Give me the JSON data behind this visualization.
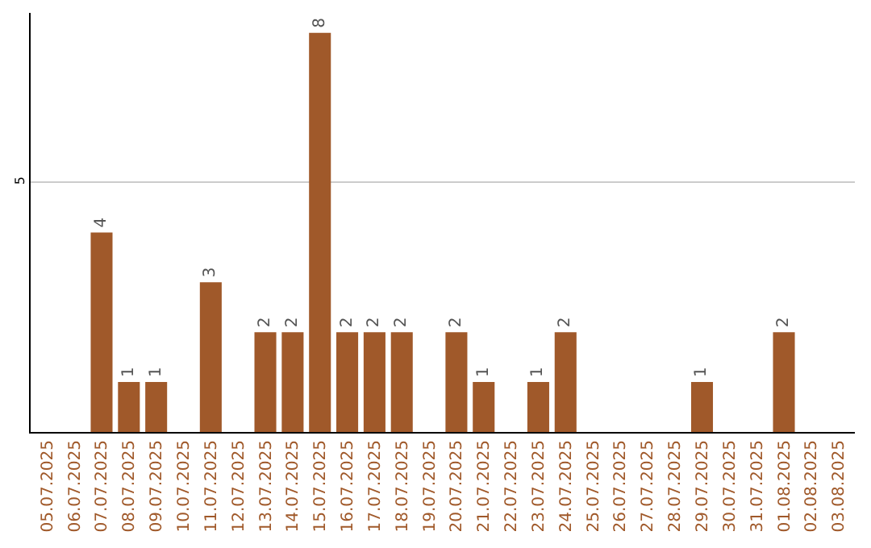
{
  "chart_data": {
    "type": "bar",
    "categories": [
      "05.07.2025",
      "06.07.2025",
      "07.07.2025",
      "08.07.2025",
      "09.07.2025",
      "10.07.2025",
      "11.07.2025",
      "12.07.2025",
      "13.07.2025",
      "14.07.2025",
      "15.07.2025",
      "16.07.2025",
      "17.07.2025",
      "18.07.2025",
      "19.07.2025",
      "20.07.2025",
      "21.07.2025",
      "22.07.2025",
      "23.07.2025",
      "24.07.2025",
      "25.07.2025",
      "26.07.2025",
      "27.07.2025",
      "28.07.2025",
      "29.07.2025",
      "30.07.2025",
      "31.07.2025",
      "01.08.2025",
      "02.08.2025",
      "03.08.2025"
    ],
    "values": [
      0,
      0,
      4,
      1,
      1,
      0,
      3,
      0,
      2,
      2,
      8,
      2,
      2,
      2,
      0,
      2,
      1,
      0,
      1,
      2,
      0,
      0,
      0,
      0,
      1,
      0,
      0,
      2,
      0,
      0
    ],
    "value_labels": [
      null,
      null,
      "4",
      "1",
      "1",
      null,
      "3",
      null,
      "2",
      "2",
      "8",
      "2",
      "2",
      "2",
      null,
      "2",
      "1",
      null,
      "1",
      "2",
      null,
      null,
      null,
      null,
      "1",
      null,
      null,
      "2",
      null,
      null
    ],
    "color": "#a0592a",
    "ylim": [
      0,
      8.4
    ],
    "yticks": [
      5
    ],
    "grid": "y",
    "legend": false
  }
}
